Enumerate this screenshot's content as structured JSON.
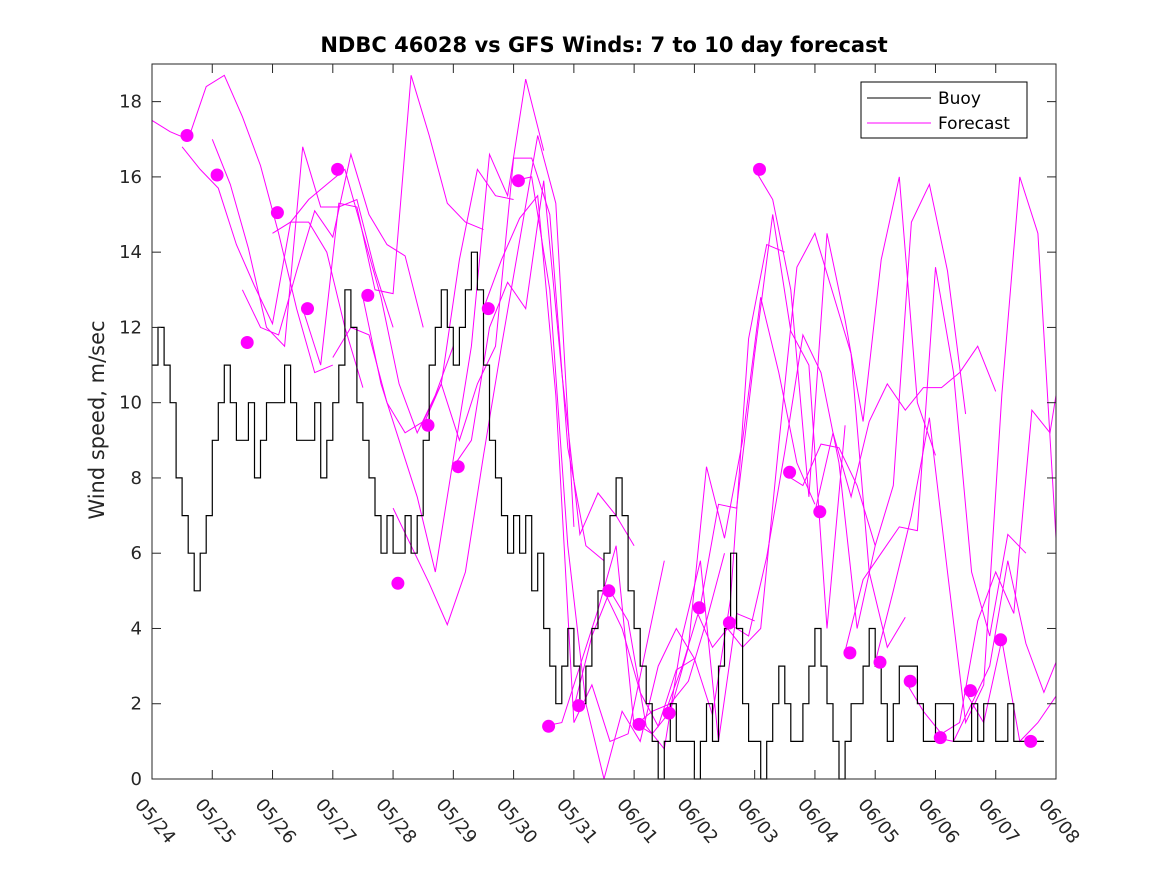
{
  "chart_data": {
    "type": "line",
    "title": "NDBC 46028 vs GFS Winds: 7 to 10 day forecast",
    "xlabel": "",
    "ylabel": "Wind speed, m/sec",
    "x_tick_labels": [
      "05/24",
      "05/25",
      "05/26",
      "05/27",
      "05/28",
      "05/29",
      "05/30",
      "05/31",
      "06/01",
      "06/02",
      "06/03",
      "06/04",
      "06/05",
      "06/06",
      "06/07",
      "06/08"
    ],
    "y_ticks": [
      0,
      2,
      4,
      6,
      8,
      10,
      12,
      14,
      16,
      18
    ],
    "xlim": [
      0,
      15
    ],
    "ylim": [
      0,
      19
    ],
    "grid": false,
    "legend_position": "top-right",
    "legend": [
      {
        "label": "Buoy",
        "color": "#000000"
      },
      {
        "label": "Forecast",
        "color": "#ff00ff"
      }
    ],
    "colors": {
      "buoy": "#000000",
      "forecast": "#ff00ff"
    },
    "buoy": {
      "name": "Buoy",
      "x": [
        0,
        0.1,
        0.2,
        0.3,
        0.4,
        0.5,
        0.6,
        0.7,
        0.8,
        0.9,
        1.0,
        1.1,
        1.2,
        1.3,
        1.4,
        1.5,
        1.6,
        1.7,
        1.8,
        1.9,
        2.0,
        2.1,
        2.2,
        2.3,
        2.4,
        2.5,
        2.6,
        2.7,
        2.8,
        2.9,
        3.0,
        3.1,
        3.2,
        3.3,
        3.4,
        3.5,
        3.6,
        3.7,
        3.8,
        3.9,
        4.0,
        4.1,
        4.2,
        4.3,
        4.4,
        4.5,
        4.6,
        4.7,
        4.8,
        4.9,
        5.0,
        5.1,
        5.2,
        5.3,
        5.4,
        5.5,
        5.6,
        5.7,
        5.8,
        5.9,
        6.0,
        6.1,
        6.2,
        6.3,
        6.4,
        6.5,
        6.6,
        6.7,
        6.8,
        6.9,
        7.0,
        7.1,
        7.2,
        7.3,
        7.4,
        7.5,
        7.6,
        7.7,
        7.8,
        7.9,
        8.0,
        8.1,
        8.2,
        8.3,
        8.4,
        8.5,
        8.6,
        8.7,
        8.8,
        8.9,
        9.0,
        9.1,
        9.2,
        9.3,
        9.4,
        9.5,
        9.6,
        9.7,
        9.8,
        9.9,
        10.0,
        10.1,
        10.2,
        10.3,
        10.4,
        10.5,
        10.6,
        10.7,
        10.8,
        10.9,
        11.0,
        11.1,
        11.2,
        11.3,
        11.4,
        11.5,
        11.6,
        11.7,
        11.8,
        11.9,
        12.0,
        12.1,
        12.2,
        12.3,
        12.4,
        12.5,
        12.6,
        12.7,
        12.8,
        12.9,
        13.0,
        13.1,
        13.2,
        13.3,
        13.4,
        13.5,
        13.6,
        13.7,
        13.8,
        13.9,
        14.0,
        14.1,
        14.2,
        14.3,
        14.4,
        14.5,
        14.6,
        14.7,
        14.8
      ],
      "y": [
        11,
        12,
        11,
        10,
        8,
        7,
        6,
        5,
        6,
        7,
        9,
        10,
        11,
        10,
        9,
        9,
        10,
        8,
        9,
        10,
        10,
        10,
        11,
        10,
        9,
        9,
        9,
        10,
        8,
        9,
        10,
        11,
        13,
        12,
        10,
        9,
        8,
        7,
        6,
        7,
        6,
        6,
        7,
        6,
        7,
        9,
        11,
        12,
        13,
        12,
        11,
        12,
        13,
        14,
        13,
        11,
        9,
        8,
        7,
        6,
        7,
        6,
        7,
        5,
        6,
        4,
        3,
        2,
        3,
        4,
        3,
        2,
        3,
        4,
        5,
        6,
        7,
        8,
        7,
        5,
        4,
        3,
        2,
        1,
        0,
        1,
        2,
        1,
        1,
        1,
        0,
        1,
        2,
        1,
        3,
        4,
        6,
        4,
        2,
        1,
        1,
        0,
        1,
        2,
        3,
        2,
        1,
        1,
        2,
        3,
        4,
        3,
        2,
        1,
        0,
        1,
        2,
        2,
        3,
        4,
        3,
        2,
        1,
        2,
        3,
        3,
        3,
        2,
        1,
        1,
        2,
        2,
        2,
        1,
        1,
        1,
        2,
        1,
        2,
        2,
        1,
        1,
        2,
        1,
        1,
        1,
        1,
        1,
        1
      ]
    },
    "forecast_lines": [
      {
        "x": [
          0.0,
          0.3,
          0.6,
          0.9,
          1.2,
          1.5,
          1.8,
          2.1,
          2.4,
          2.7,
          3.0
        ],
        "y": [
          17.5,
          17.2,
          17.0,
          18.4,
          18.7,
          17.6,
          16.3,
          14.5,
          12.5,
          10.8,
          11.0
        ]
      },
      {
        "x": [
          0.5,
          0.8,
          1.1,
          1.4,
          1.7,
          2.0,
          2.3,
          2.6,
          2.9,
          3.2,
          3.5
        ],
        "y": [
          16.8,
          16.2,
          15.7,
          14.2,
          13.1,
          12.1,
          14.8,
          14.8,
          14.0,
          12.0,
          10.4
        ]
      },
      {
        "x": [
          1.0,
          1.3,
          1.6,
          1.9,
          2.2,
          2.5,
          2.8,
          3.1,
          3.4,
          3.7,
          4.0
        ],
        "y": [
          17.0,
          15.8,
          14.1,
          12.0,
          11.5,
          16.8,
          15.2,
          15.2,
          15.4,
          13.5,
          12.0
        ]
      },
      {
        "x": [
          1.5,
          1.8,
          2.1,
          2.4,
          2.7,
          3.0,
          3.3,
          3.6,
          3.9,
          4.2,
          4.5
        ],
        "y": [
          13.0,
          12.0,
          11.8,
          13.5,
          15.1,
          14.4,
          16.6,
          15.0,
          14.2,
          13.9,
          12.0
        ]
      },
      {
        "x": [
          2.0,
          2.3,
          2.6,
          2.9,
          3.2,
          3.5,
          3.8,
          4.1,
          4.4,
          4.7,
          5.0
        ],
        "y": [
          14.5,
          14.8,
          15.4,
          15.8,
          16.2,
          14.5,
          12.8,
          10.5,
          9.2,
          10.2,
          11.5
        ]
      },
      {
        "x": [
          2.5,
          2.8,
          3.1,
          3.4,
          3.7,
          4.0,
          4.3,
          4.6,
          4.9,
          5.2,
          5.5
        ],
        "y": [
          12.5,
          11.0,
          15.3,
          15.2,
          13.0,
          12.9,
          18.7,
          17.1,
          15.3,
          14.8,
          14.6
        ]
      },
      {
        "x": [
          3.0,
          3.3,
          3.6,
          3.9,
          4.2,
          4.5,
          4.8,
          5.1,
          5.4,
          5.7,
          6.0
        ],
        "y": [
          11.2,
          12.0,
          11.8,
          10.0,
          9.2,
          9.5,
          10.5,
          13.8,
          16.2,
          15.5,
          15.4
        ]
      },
      {
        "x": [
          3.5,
          3.8,
          4.1,
          4.4,
          4.7,
          5.0,
          5.3,
          5.6,
          5.9,
          6.2,
          6.5
        ],
        "y": [
          12.8,
          10.5,
          9.0,
          7.5,
          5.5,
          8.5,
          11.5,
          16.6,
          15.5,
          18.6,
          16.7
        ]
      },
      {
        "x": [
          4.0,
          4.3,
          4.6,
          4.9,
          5.2,
          5.5,
          5.8,
          6.1,
          6.4,
          6.7,
          7.0
        ],
        "y": [
          7.2,
          6.2,
          5.2,
          4.1,
          5.5,
          8.6,
          11.5,
          14.3,
          17.1,
          15.3,
          6.7
        ]
      },
      {
        "x": [
          4.5,
          4.8,
          5.1,
          5.4,
          5.7,
          6.0,
          6.3,
          6.6,
          6.9,
          7.2,
          7.5
        ],
        "y": [
          9.4,
          10.5,
          9.0,
          10.5,
          11.5,
          16.5,
          16.5,
          15.0,
          8.8,
          6.2,
          5.8
        ]
      },
      {
        "x": [
          5.0,
          5.3,
          5.6,
          5.9,
          6.2,
          6.5,
          6.8,
          7.1,
          7.4,
          7.7,
          8.0
        ],
        "y": [
          8.3,
          9.0,
          12.0,
          13.2,
          12.5,
          15.9,
          10.8,
          6.5,
          7.6,
          7.0,
          6.2
        ]
      },
      {
        "x": [
          5.5,
          5.8,
          6.1,
          6.4,
          6.7,
          7.0,
          7.3,
          7.6,
          7.9,
          8.2,
          8.5
        ],
        "y": [
          12.5,
          13.8,
          14.9,
          15.5,
          10.2,
          1.5,
          2.5,
          1.0,
          1.2,
          3.5,
          5.8
        ]
      },
      {
        "x": [
          6.0,
          6.3,
          6.6,
          6.9,
          7.2,
          7.5,
          7.8,
          8.1,
          8.4,
          8.7,
          9.0
        ],
        "y": [
          15.9,
          16.0,
          13.0,
          6.2,
          2.0,
          0.0,
          1.8,
          1.0,
          3.0,
          4.0,
          3.2
        ]
      },
      {
        "x": [
          6.5,
          6.8,
          7.1,
          7.4,
          7.7,
          8.0,
          8.3,
          8.6,
          8.9,
          9.2,
          9.5
        ],
        "y": [
          1.4,
          1.5,
          3.0,
          4.5,
          6.2,
          1.4,
          1.8,
          2.0,
          2.6,
          4.2,
          6.0
        ]
      },
      {
        "x": [
          7.0,
          7.3,
          7.6,
          7.9,
          8.2,
          8.5,
          8.8,
          9.1,
          9.4,
          9.7,
          10.0
        ],
        "y": [
          1.9,
          3.8,
          5.0,
          4.2,
          1.4,
          0.8,
          3.8,
          5.8,
          1.0,
          4.4,
          4.2
        ]
      },
      {
        "x": [
          7.5,
          7.8,
          8.1,
          8.4,
          8.7,
          9.0,
          9.3,
          9.6,
          9.9,
          10.2,
          10.5
        ],
        "y": [
          5.0,
          4.0,
          2.3,
          1.4,
          2.9,
          3.2,
          1.7,
          4.8,
          11.7,
          14.2,
          14.0
        ]
      },
      {
        "x": [
          8.0,
          8.3,
          8.6,
          8.9,
          9.2,
          9.5,
          9.8,
          10.1,
          10.4,
          10.7,
          11.0
        ],
        "y": [
          1.5,
          1.2,
          1.8,
          3.5,
          8.3,
          6.4,
          9.0,
          12.8,
          10.8,
          8.4,
          7.3
        ]
      },
      {
        "x": [
          8.5,
          8.8,
          9.1,
          9.4,
          9.7,
          10.0,
          10.3,
          10.6,
          10.9,
          11.2,
          11.5
        ],
        "y": [
          1.7,
          3.0,
          4.6,
          7.3,
          7.2,
          11.3,
          15.0,
          11.9,
          11.0,
          4.0,
          9.4
        ]
      },
      {
        "x": [
          9.0,
          9.3,
          9.6,
          9.9,
          10.2,
          10.5,
          10.8,
          11.1,
          11.4,
          11.7,
          12.0
        ],
        "y": [
          4.6,
          3.5,
          4.1,
          3.8,
          5.9,
          8.7,
          11.8,
          10.8,
          8.4,
          4.0,
          6.2
        ]
      },
      {
        "x": [
          9.5,
          9.8,
          10.1,
          10.4,
          10.7,
          11.0,
          11.3,
          11.6,
          11.9,
          12.2,
          12.5
        ],
        "y": [
          4.1,
          3.5,
          4.0,
          8.9,
          13.6,
          14.5,
          12.9,
          11.3,
          5.5,
          3.5,
          4.3
        ]
      },
      {
        "x": [
          10.0,
          10.3,
          10.6,
          10.9,
          11.2,
          11.5,
          11.8,
          12.1,
          12.4,
          12.7,
          13.0
        ],
        "y": [
          16.2,
          15.4,
          13.0,
          7.5,
          14.5,
          12.2,
          9.5,
          13.8,
          16.0,
          10.0,
          8.6
        ]
      },
      {
        "x": [
          10.5,
          10.8,
          11.1,
          11.4,
          11.7,
          12.0,
          12.3,
          12.6,
          12.9,
          13.2,
          13.5
        ],
        "y": [
          8.1,
          7.8,
          8.9,
          8.8,
          7.8,
          6.2,
          7.8,
          14.8,
          15.8,
          13.5,
          9.7
        ]
      },
      {
        "x": [
          11.0,
          11.3,
          11.6,
          11.9,
          12.2,
          12.5,
          12.8,
          13.1,
          13.4,
          13.7,
          14.0
        ],
        "y": [
          7.1,
          9.2,
          7.5,
          9.5,
          10.5,
          9.8,
          10.4,
          10.4,
          10.8,
          11.5,
          10.3
        ]
      },
      {
        "x": [
          11.5,
          11.8,
          12.1,
          12.4,
          12.7,
          13.0,
          13.3,
          13.6,
          13.9,
          14.2,
          14.5
        ],
        "y": [
          3.4,
          5.3,
          6.0,
          6.7,
          6.6,
          13.6,
          10.8,
          5.5,
          3.8,
          6.5,
          6.0
        ]
      },
      {
        "x": [
          12.0,
          12.3,
          12.6,
          12.9,
          13.2,
          13.5,
          13.8,
          14.1,
          14.4,
          14.7,
          15.0
        ],
        "y": [
          3.1,
          5.0,
          7.0,
          9.6,
          5.5,
          1.5,
          2.5,
          10.2,
          16.0,
          14.5,
          6.4
        ]
      },
      {
        "x": [
          12.5,
          12.8,
          13.1,
          13.4,
          13.7,
          14.0,
          14.3,
          14.6,
          14.9,
          15.0
        ],
        "y": [
          2.6,
          1.8,
          1.2,
          1.5,
          4.2,
          5.5,
          4.4,
          9.8,
          9.2,
          10.2
        ]
      },
      {
        "x": [
          13.0,
          13.3,
          13.6,
          13.9,
          14.2,
          14.5,
          14.8,
          15.0
        ],
        "y": [
          1.1,
          1.0,
          2.0,
          3.0,
          5.8,
          3.6,
          2.3,
          3.1
        ]
      },
      {
        "x": [
          13.5,
          13.8,
          14.1,
          14.4,
          14.7,
          15.0
        ],
        "y": [
          2.3,
          1.5,
          3.7,
          1.0,
          1.5,
          2.2
        ]
      }
    ],
    "forecast_markers": {
      "x": [
        0.58,
        1.08,
        1.58,
        2.08,
        2.58,
        3.08,
        3.58,
        4.08,
        4.58,
        5.08,
        5.58,
        6.08,
        6.58,
        7.08,
        7.58,
        8.08,
        8.58,
        9.08,
        9.58,
        10.08,
        10.58,
        11.08,
        11.58,
        12.08,
        12.58,
        13.08,
        13.58,
        14.08,
        14.58
      ],
      "y": [
        17.1,
        16.05,
        11.6,
        15.05,
        12.5,
        16.2,
        12.85,
        5.2,
        9.4,
        8.3,
        12.5,
        15.9,
        1.4,
        1.95,
        5.0,
        1.45,
        1.75,
        4.55,
        4.15,
        16.2,
        8.15,
        7.1,
        3.35,
        3.1,
        2.6,
        1.1,
        2.35,
        3.7,
        1.0
      ]
    }
  }
}
